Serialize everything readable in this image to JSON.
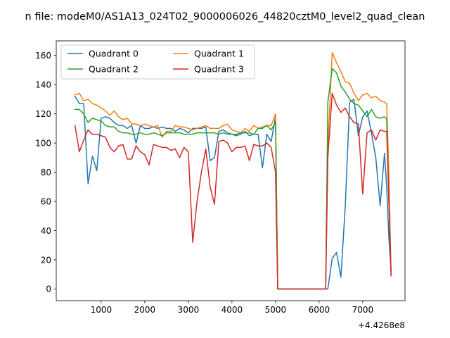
{
  "chart_data": {
    "type": "line",
    "title": "n file: modeM0/AS1A13_024T02_9000006026_44820cztM0_level2_quad_clean",
    "xlabel": "",
    "ylabel": "",
    "x_offset_label": "+4.4268e8",
    "xlim": [
      -30,
      7970
    ],
    "ylim": [
      -8,
      170
    ],
    "xticks": [
      1000,
      2000,
      3000,
      4000,
      5000,
      6000,
      7000
    ],
    "xtick_labels": [
      "1000",
      "2000",
      "3000",
      "4000",
      "5000",
      "6000",
      "7000"
    ],
    "yticks": [
      0,
      20,
      40,
      60,
      80,
      100,
      120,
      140,
      160
    ],
    "ytick_labels": [
      "0",
      "20",
      "40",
      "60",
      "80",
      "100",
      "120",
      "140",
      "160"
    ],
    "grid": false,
    "legend": {
      "placement": "top-left",
      "columns": 2
    },
    "x": [
      400,
      500,
      600,
      700,
      800,
      900,
      1000,
      1100,
      1200,
      1300,
      1400,
      1500,
      1600,
      1700,
      1800,
      1900,
      2000,
      2100,
      2200,
      2300,
      2400,
      2500,
      2600,
      2700,
      2800,
      2900,
      3000,
      3100,
      3200,
      3300,
      3400,
      3500,
      3600,
      3700,
      3800,
      3900,
      4000,
      4100,
      4200,
      4300,
      4400,
      4500,
      4600,
      4700,
      4800,
      4900,
      5000,
      5050,
      5100,
      5200,
      5300,
      5400,
      5500,
      5600,
      5700,
      5800,
      5900,
      6000,
      6100,
      6150,
      6200,
      6300,
      6400,
      6500,
      6600,
      6700,
      6800,
      6900,
      7000,
      7100,
      7200,
      7300,
      7400,
      7500,
      7550,
      7600,
      7650
    ],
    "series": [
      {
        "name": "Quadrant 0",
        "color": "#1f77b4",
        "values": [
          132,
          127,
          127,
          72,
          91,
          81,
          117,
          118,
          117,
          114,
          112,
          112,
          110,
          112,
          100,
          112,
          110,
          110,
          111,
          110,
          111,
          110,
          110,
          108,
          110,
          109,
          107,
          110,
          110,
          110,
          111,
          88,
          90,
          108,
          109,
          107,
          106,
          105,
          106,
          108,
          105,
          106,
          106,
          83,
          106,
          101,
          118,
          0,
          0,
          0,
          0,
          0,
          0,
          0,
          0,
          0,
          0,
          0,
          0,
          0,
          0,
          21,
          25,
          8,
          57,
          128,
          130,
          105,
          118,
          122,
          107,
          90,
          57,
          93,
          70,
          35,
          13
        ]
      },
      {
        "name": "Quadrant 1",
        "color": "#ff7f0e",
        "values": [
          133,
          134,
          129,
          130,
          127,
          126,
          124,
          122,
          119,
          122,
          118,
          116,
          117,
          113,
          113,
          112,
          113,
          112,
          111,
          112,
          104,
          108,
          108,
          112,
          111,
          111,
          110,
          109,
          110,
          111,
          112,
          110,
          110,
          110,
          112,
          113,
          109,
          108,
          107,
          110,
          108,
          112,
          110,
          111,
          112,
          112,
          120,
          0,
          0,
          0,
          0,
          0,
          0,
          0,
          0,
          0,
          0,
          0,
          0,
          0,
          96,
          162,
          155,
          149,
          142,
          141,
          134,
          129,
          133,
          134,
          131,
          132,
          129,
          128,
          127,
          80,
          12
        ]
      },
      {
        "name": "Quadrant 2",
        "color": "#2ca02c",
        "values": [
          123,
          123,
          120,
          114,
          117,
          116,
          115,
          112,
          111,
          111,
          108,
          107,
          107,
          106,
          106,
          107,
          106,
          106,
          107,
          106,
          105,
          107,
          107,
          107,
          107,
          106,
          106,
          106,
          107,
          107,
          107,
          107,
          107,
          106,
          107,
          106,
          106,
          106,
          107,
          107,
          107,
          106,
          110,
          110,
          112,
          109,
          114,
          0,
          0,
          0,
          0,
          0,
          0,
          0,
          0,
          0,
          0,
          0,
          0,
          0,
          128,
          151,
          148,
          139,
          135,
          130,
          127,
          126,
          122,
          118,
          123,
          118,
          117,
          118,
          117,
          60,
          10
        ]
      },
      {
        "name": "Quadrant 3",
        "color": "#d62728",
        "values": [
          112,
          94,
          102,
          109,
          106,
          106,
          105,
          104,
          97,
          94,
          98,
          99,
          89,
          89,
          98,
          94,
          92,
          85,
          99,
          98,
          97,
          97,
          95,
          96,
          90,
          97,
          94,
          32,
          60,
          80,
          96,
          70,
          58,
          101,
          102,
          100,
          94,
          97,
          97,
          98,
          88,
          99,
          98,
          98,
          100,
          97,
          80,
          0,
          0,
          0,
          0,
          0,
          0,
          0,
          0,
          0,
          0,
          0,
          0,
          0,
          90,
          134,
          126,
          121,
          124,
          118,
          114,
          113,
          65,
          107,
          109,
          102,
          109,
          108,
          108,
          60,
          9
        ]
      }
    ]
  }
}
